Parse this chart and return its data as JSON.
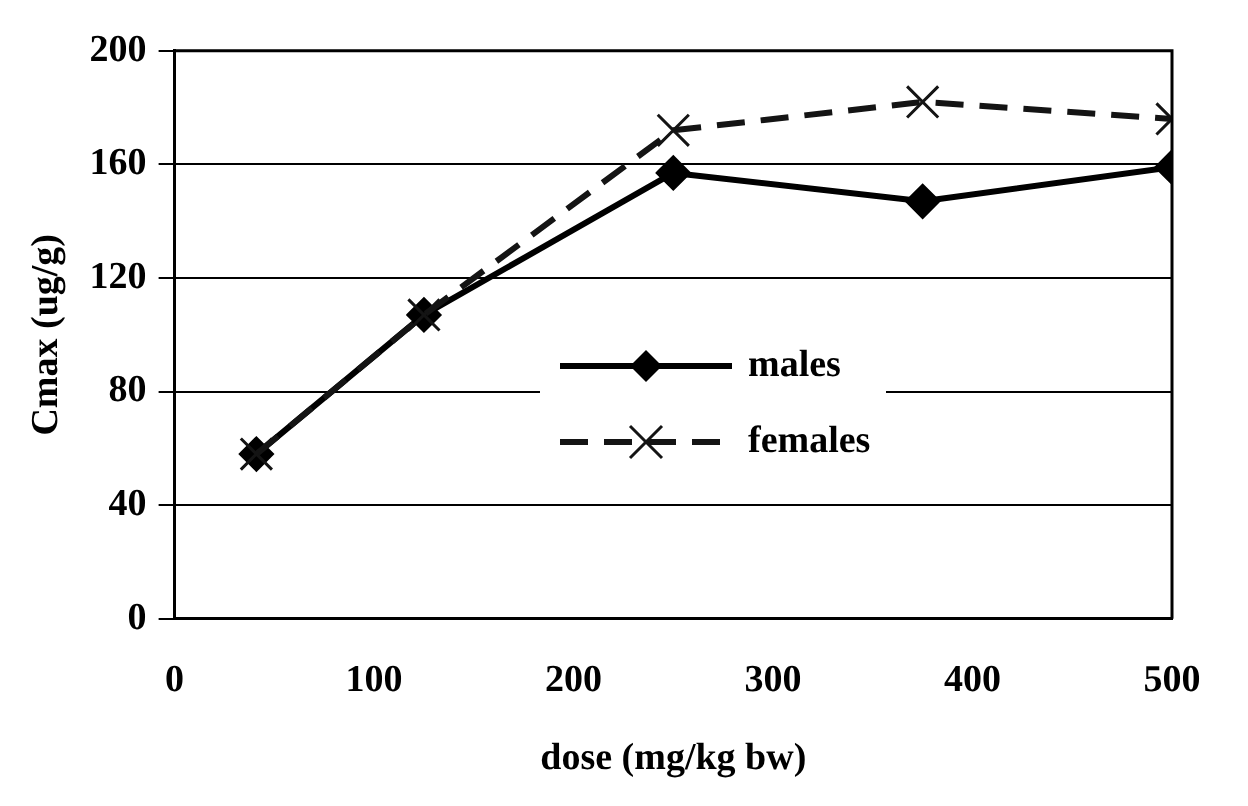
{
  "chart_data": {
    "type": "line",
    "xlabel": "dose (mg/kg bw)",
    "ylabel": "Cmax (ug/g)",
    "x": [
      41,
      125,
      250,
      375,
      500
    ],
    "series": [
      {
        "name": "males",
        "color": "#000000",
        "values": [
          58,
          107,
          157,
          147,
          159
        ],
        "marker": "diamond",
        "line_style": "solid"
      },
      {
        "name": "females",
        "color": "#141414",
        "values": [
          58,
          107,
          172,
          182,
          176
        ],
        "marker": "cross",
        "line_style": "dashed"
      }
    ],
    "xlim": [
      0,
      500
    ],
    "xticks": [
      0,
      100,
      200,
      300,
      400,
      500
    ],
    "ylim": [
      0,
      200
    ],
    "yticks": [
      0,
      40,
      80,
      120,
      160,
      200
    ],
    "grid": "y",
    "legend": "center"
  }
}
